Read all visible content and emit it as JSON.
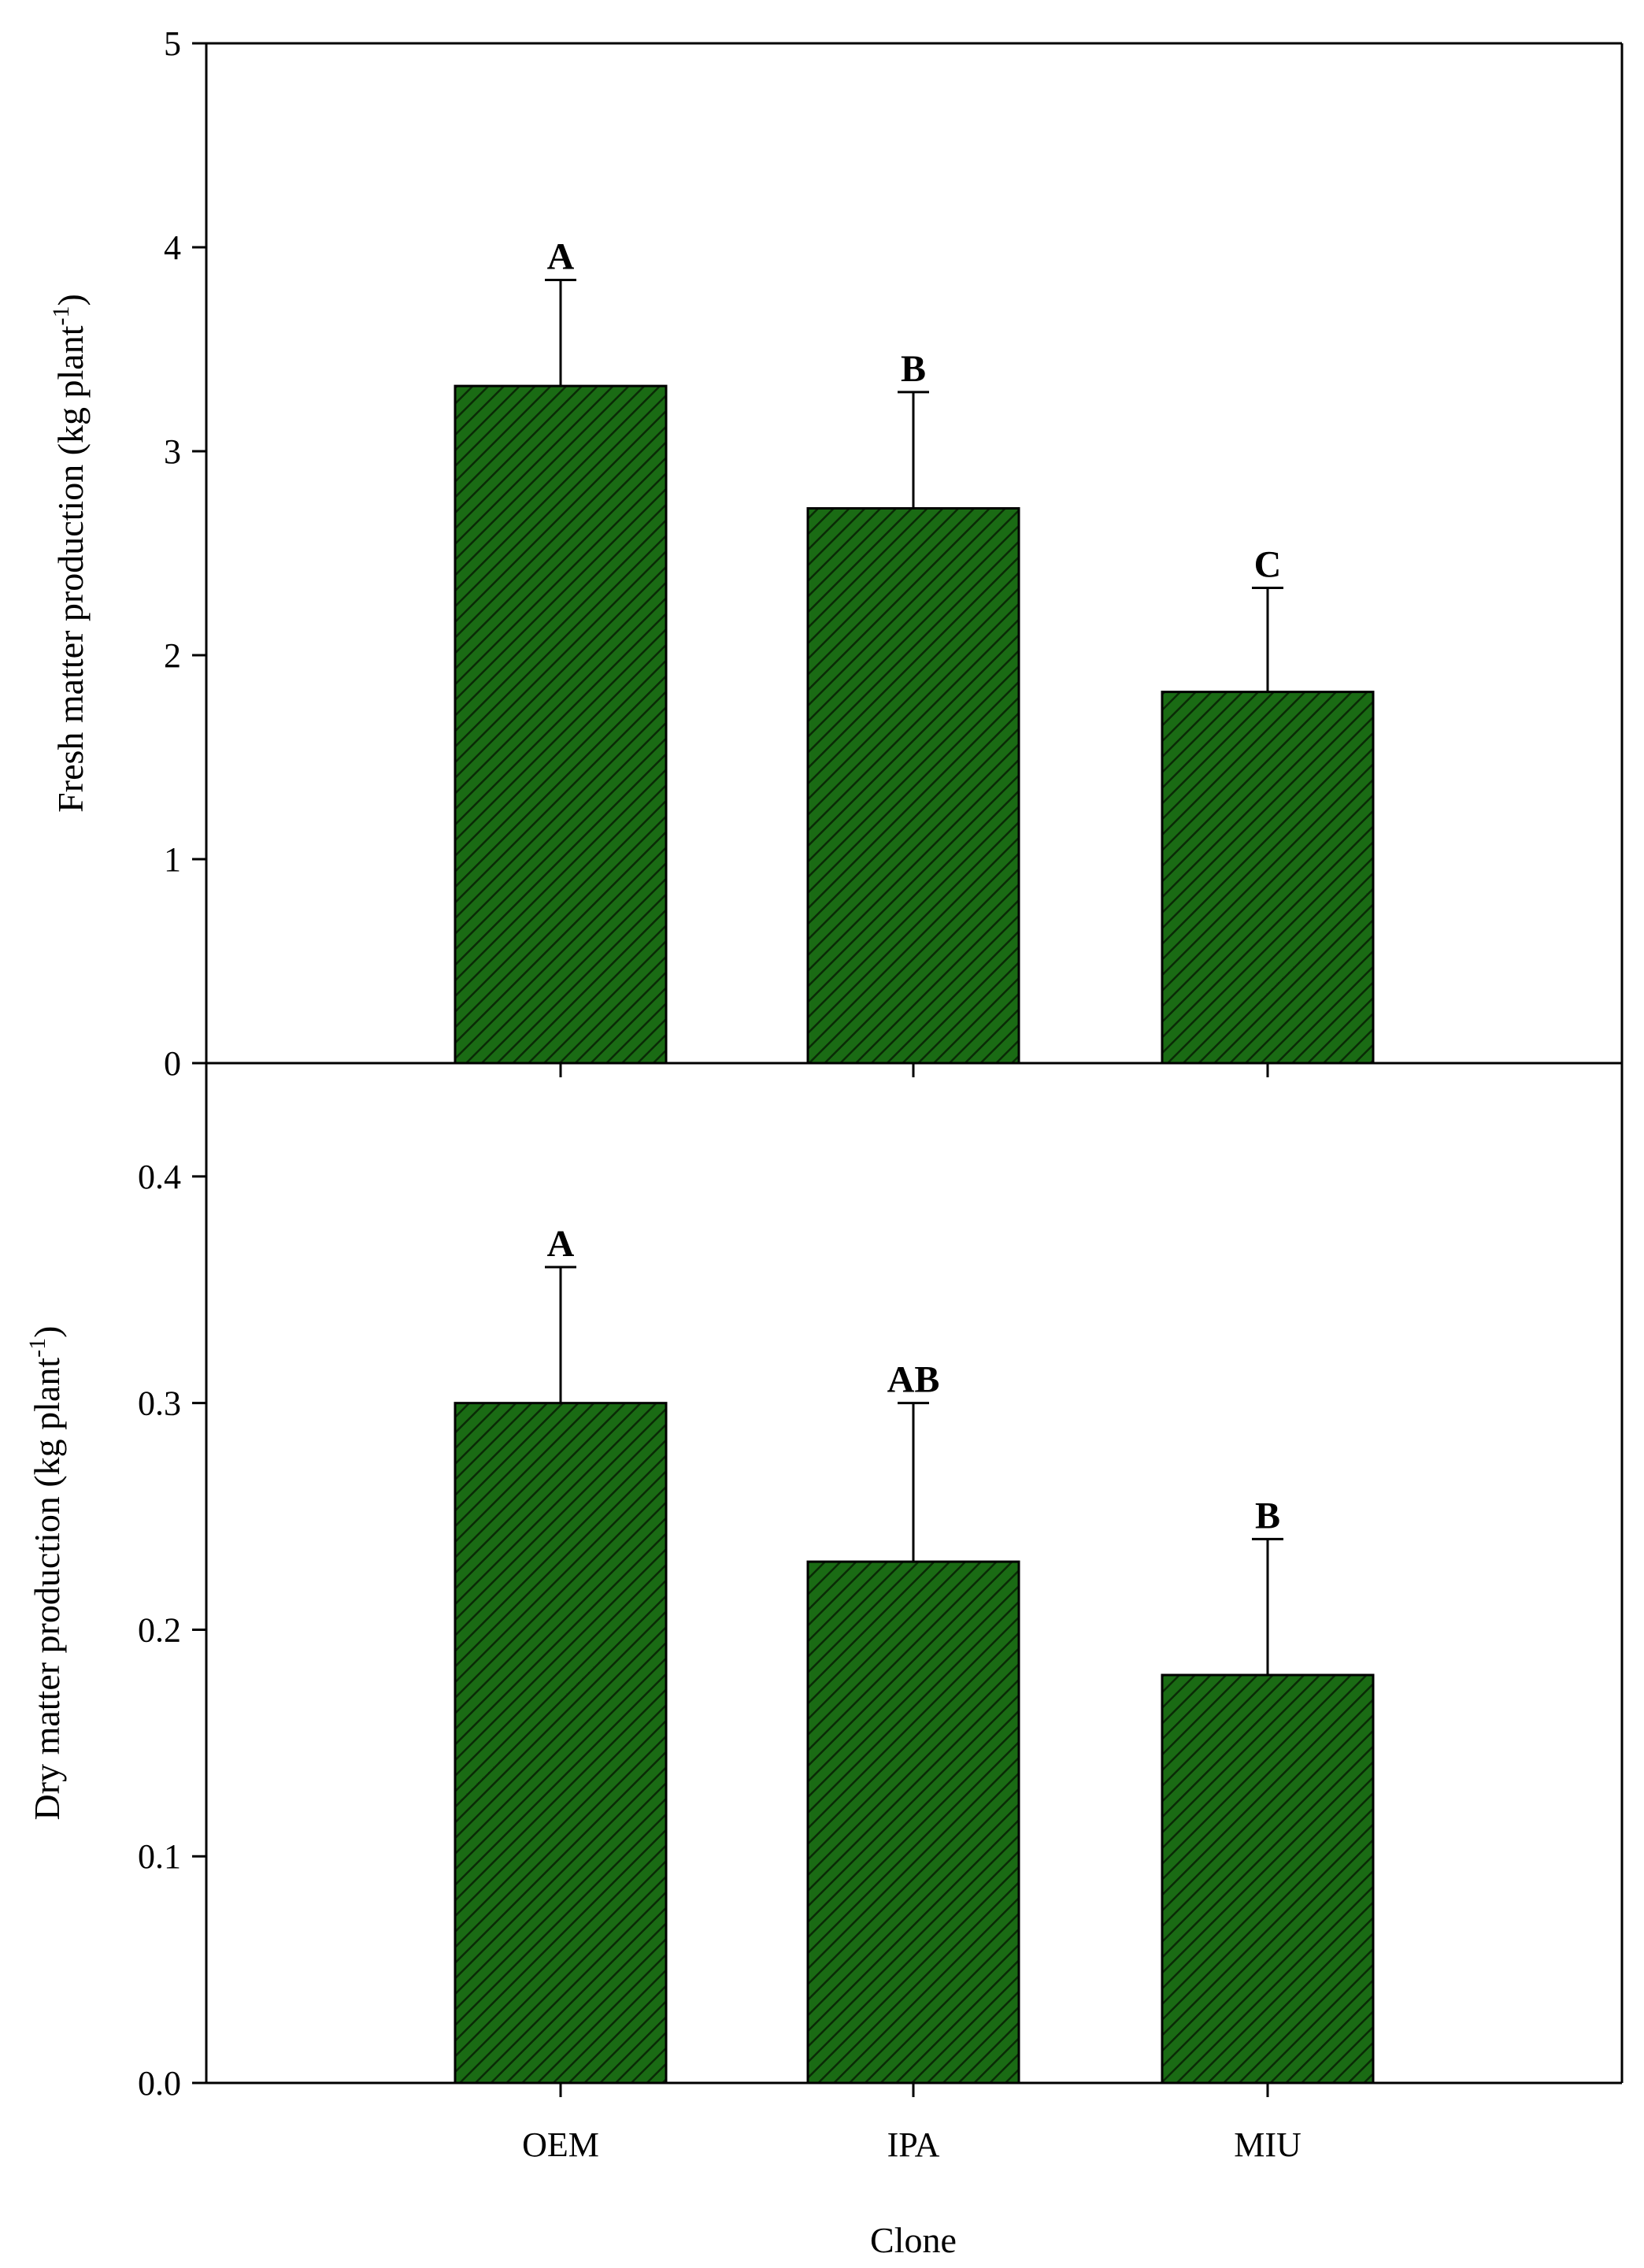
{
  "chart_data": [
    {
      "type": "bar",
      "panel": "top",
      "title": "",
      "xlabel": "",
      "ylabel": "Fresh matter production (kg plant-1)",
      "ylabel_main": "Fresh matter production (kg plant",
      "ylabel_sup": "-1",
      "ylabel_close": ")",
      "categories": [
        "OEM",
        "IPA",
        "MIU"
      ],
      "values": [
        3.32,
        2.72,
        1.82
      ],
      "errors": [
        0.52,
        0.57,
        0.51
      ],
      "significance": [
        "A",
        "B",
        "C"
      ],
      "ylim": [
        0,
        5
      ],
      "yticks": [
        0,
        1,
        2,
        3,
        4,
        5
      ],
      "ytick_labels": [
        "0",
        "1",
        "2",
        "3",
        "4",
        "5"
      ],
      "bar_color": "#1a6b14",
      "hatch_color": "#0a2a06"
    },
    {
      "type": "bar",
      "panel": "bottom",
      "title": "",
      "xlabel": "Clone",
      "ylabel": "Dry matter production (kg plant-1)",
      "ylabel_main": "Dry matter production (kg plant",
      "ylabel_sup": "-1",
      "ylabel_close": ")",
      "categories": [
        "OEM",
        "IPA",
        "MIU"
      ],
      "values": [
        0.3,
        0.23,
        0.18
      ],
      "errors": [
        0.06,
        0.07,
        0.06
      ],
      "significance": [
        "A",
        "AB",
        "B"
      ],
      "ylim": [
        0,
        0.45
      ],
      "yticks": [
        0.0,
        0.1,
        0.2,
        0.3,
        0.4
      ],
      "ytick_labels": [
        "0.0",
        "0.1",
        "0.2",
        "0.3",
        "0.4"
      ],
      "bar_color": "#1a6b14",
      "hatch_color": "#0a2a06"
    }
  ]
}
